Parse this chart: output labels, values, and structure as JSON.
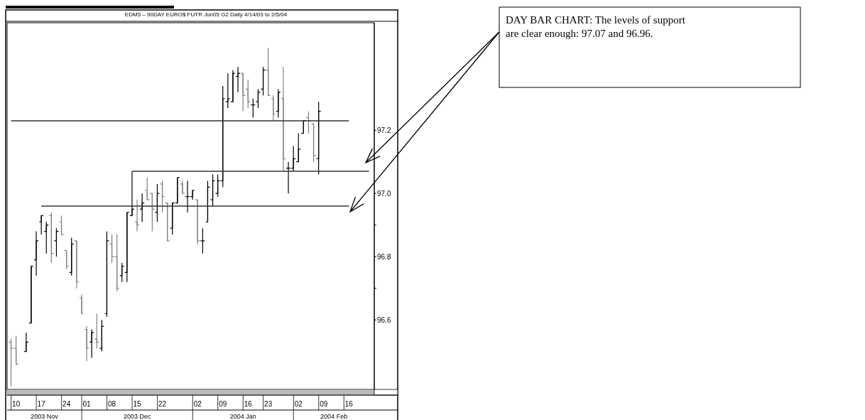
{
  "chart_data": {
    "type": "candlestick",
    "title": "EDM5 – 90DAY EURO$ FUTR Jun05 G2 Daily 4/14/03 to 2/5/04",
    "categories": [
      null,
      "10",
      null,
      null,
      null,
      null,
      "17",
      null,
      null,
      null,
      null,
      "24",
      null,
      null,
      null,
      "01",
      null,
      null,
      null,
      null,
      "08",
      null,
      null,
      null,
      null,
      "15",
      null,
      null,
      null,
      null,
      "22",
      null,
      null,
      null,
      null,
      null,
      null,
      "02",
      null,
      null,
      null,
      null,
      "09",
      null,
      null,
      null,
      null,
      "16",
      null,
      null,
      null,
      "23",
      null,
      null,
      null,
      null,
      null,
      "02",
      null,
      null,
      null,
      null,
      "09",
      null,
      null,
      null,
      null,
      "16",
      null,
      null,
      null,
      null,
      null
    ],
    "colors": [
      "#808080",
      "#808080",
      null,
      "#000000",
      "#000000",
      "#000000",
      "#000000",
      "#000000",
      "#808080",
      "#000000",
      "#808080",
      "#808080",
      "#000000",
      "#808080",
      "#808080",
      "#808080",
      "#000000",
      "#808080",
      "#000000",
      "#000000",
      "#808080",
      "#808080",
      "#000000",
      "#000000",
      "#000000",
      "#808080",
      "#000000",
      "#808080",
      "#808080",
      "#000000",
      "#808080",
      "#808080",
      "#000000",
      "#000000",
      "#808080",
      "#000000",
      "#000000",
      "#808080",
      "#000000",
      "#000000",
      "#000000",
      "#000000",
      "#000000",
      "#000000",
      "#000000",
      "#000000",
      "#808080",
      "#808080",
      "#000000",
      "#000000",
      "#000000",
      "#808080",
      "#808080",
      "#000000",
      "#808080",
      "#000000",
      "#000000",
      "#000000",
      "#000000",
      "#808080",
      "#808080",
      "#000000",
      null,
      null,
      null,
      null,
      null,
      null,
      null,
      null,
      null,
      null,
      null
    ],
    "ohlc": [
      [
        96.53,
        96.54,
        96.39,
        96.51
      ],
      [
        96.51,
        96.55,
        96.46,
        96.46
      ],
      null,
      [
        96.5,
        96.56,
        96.5,
        96.53
      ],
      [
        96.59,
        96.77,
        96.59,
        96.77
      ],
      [
        96.79,
        96.88,
        96.74,
        96.85
      ],
      [
        96.91,
        96.93,
        96.87,
        96.93
      ],
      [
        96.88,
        96.91,
        96.81,
        96.9
      ],
      [
        96.93,
        96.94,
        96.78,
        96.81
      ],
      [
        96.85,
        96.89,
        96.8,
        96.88
      ],
      [
        96.91,
        96.93,
        96.87,
        96.87
      ],
      [
        96.82,
        96.82,
        96.76,
        96.77
      ],
      [
        96.75,
        96.86,
        96.74,
        96.84
      ],
      [
        96.85,
        96.85,
        96.7,
        96.72
      ],
      [
        96.67,
        96.68,
        96.62,
        96.62
      ],
      [
        96.57,
        96.58,
        96.47,
        96.51
      ],
      [
        96.53,
        96.57,
        96.48,
        96.56
      ],
      [
        96.54,
        96.62,
        96.51,
        96.53
      ],
      [
        96.51,
        96.6,
        96.5,
        96.58
      ],
      [
        96.62,
        96.88,
        96.61,
        96.85
      ],
      [
        96.84,
        96.87,
        96.78,
        96.8
      ],
      [
        96.8,
        96.87,
        96.69,
        96.7
      ],
      [
        96.74,
        96.78,
        96.72,
        96.77
      ],
      [
        96.75,
        96.94,
        96.72,
        96.94
      ],
      [
        96.93,
        97.07,
        96.93,
        96.95
      ],
      [
        96.91,
        96.98,
        96.88,
        96.9
      ],
      [
        96.95,
        97.0,
        96.91,
        96.97
      ],
      [
        97.01,
        97.05,
        96.98,
        96.98
      ],
      [
        97.0,
        97.0,
        96.88,
        96.95
      ],
      [
        96.94,
        97.03,
        96.91,
        97.0
      ],
      [
        97.03,
        97.04,
        96.94,
        96.99
      ],
      [
        96.97,
        96.97,
        96.85,
        96.85
      ],
      [
        96.89,
        96.97,
        96.87,
        96.97
      ],
      [
        96.97,
        97.05,
        96.97,
        97.05
      ],
      [
        97.03,
        97.04,
        97.0,
        97.0
      ],
      [
        96.99,
        97.04,
        96.94,
        96.99
      ],
      [
        96.99,
        97.01,
        96.98,
        97.01
      ],
      [
        96.98,
        96.98,
        96.84,
        96.85
      ],
      [
        96.85,
        96.89,
        96.81,
        96.85
      ],
      [
        96.91,
        97.04,
        96.91,
        97.02
      ],
      [
        96.98,
        97.06,
        96.96,
        97.04
      ],
      [
        97.0,
        97.06,
        96.99,
        97.04
      ],
      [
        97.04,
        97.34,
        97.02,
        97.3
      ],
      [
        97.29,
        97.38,
        97.27,
        97.3
      ],
      [
        97.29,
        97.39,
        97.29,
        97.38
      ],
      [
        97.37,
        97.4,
        97.32,
        97.38
      ],
      [
        97.38,
        97.38,
        97.26,
        97.31
      ],
      [
        97.33,
        97.36,
        97.27,
        97.29
      ],
      [
        97.28,
        97.3,
        97.24,
        97.28
      ],
      [
        97.29,
        97.33,
        97.27,
        97.32
      ],
      [
        97.33,
        97.4,
        97.31,
        97.39
      ],
      [
        97.39,
        97.46,
        97.31,
        97.31
      ],
      [
        97.3,
        97.31,
        97.23,
        97.25
      ],
      [
        97.26,
        97.33,
        97.24,
        97.32
      ],
      [
        97.3,
        97.4,
        97.07,
        97.11
      ],
      [
        97.08,
        97.1,
        97.0,
        97.08
      ],
      [
        97.08,
        97.15,
        97.07,
        97.11
      ],
      [
        97.1,
        97.19,
        97.1,
        97.14
      ],
      [
        97.19,
        97.23,
        97.19,
        97.23
      ],
      [
        97.24,
        97.26,
        97.19,
        97.23
      ],
      [
        97.22,
        97.22,
        97.1,
        97.12
      ],
      [
        97.11,
        97.29,
        97.06,
        97.26
      ],
      null,
      null,
      null,
      null,
      null,
      null,
      null,
      null,
      null,
      null,
      null
    ],
    "series": [
      {
        "type": "line",
        "color": "#333333",
        "values": [
          97.23,
          97.23,
          97.23,
          97.23,
          97.23,
          97.23,
          97.23,
          97.23,
          97.23,
          97.23,
          97.23,
          97.23,
          97.23,
          97.23,
          97.23,
          97.23,
          97.23,
          97.23,
          97.23,
          97.23,
          97.23,
          97.23,
          97.23,
          97.23,
          97.23,
          97.23,
          97.23,
          97.23,
          97.23,
          97.23,
          97.23,
          97.23,
          97.23,
          97.23,
          97.23,
          97.23,
          97.23,
          97.23,
          97.23,
          97.23,
          97.23,
          97.23,
          97.23,
          97.23,
          97.23,
          97.23,
          97.23,
          97.23,
          97.23,
          97.23,
          97.23,
          97.23,
          97.23,
          97.23,
          97.23,
          97.23,
          97.23,
          97.23,
          97.23,
          97.23,
          97.23,
          97.23,
          97.23,
          97.23,
          97.23,
          97.23,
          97.23,
          97.23,
          null,
          null,
          null,
          null,
          null
        ]
      },
      {
        "type": "line",
        "color": "#333333",
        "values": [
          null,
          null,
          null,
          null,
          null,
          null,
          null,
          null,
          null,
          null,
          null,
          null,
          null,
          null,
          null,
          null,
          null,
          null,
          null,
          null,
          null,
          null,
          null,
          null,
          97.07,
          97.07,
          97.07,
          97.07,
          97.07,
          97.07,
          97.07,
          97.07,
          97.07,
          97.07,
          97.07,
          97.07,
          97.07,
          97.07,
          97.07,
          97.07,
          97.07,
          97.07,
          97.07,
          97.07,
          97.07,
          97.07,
          97.07,
          97.07,
          97.07,
          97.07,
          97.07,
          97.07,
          97.07,
          97.07,
          97.07,
          97.07,
          97.07,
          97.07,
          97.07,
          97.07,
          97.07,
          97.07,
          97.07,
          97.07,
          97.07,
          97.07,
          97.07,
          97.07,
          97.07,
          97.07,
          97.07,
          97.07,
          null
        ]
      },
      {
        "type": "line",
        "color": "#333333",
        "values": [
          null,
          null,
          null,
          null,
          null,
          null,
          96.96,
          96.96,
          96.96,
          96.96,
          96.96,
          96.96,
          96.96,
          96.96,
          96.96,
          96.96,
          96.96,
          96.96,
          96.96,
          96.96,
          96.96,
          96.96,
          96.96,
          96.96,
          96.96,
          96.96,
          96.96,
          96.96,
          96.96,
          96.96,
          96.96,
          96.96,
          96.96,
          96.96,
          96.96,
          96.96,
          96.96,
          96.96,
          96.96,
          96.96,
          96.96,
          96.96,
          96.96,
          96.96,
          96.96,
          96.96,
          96.96,
          96.96,
          96.96,
          96.96,
          96.96,
          96.96,
          96.96,
          96.96,
          96.96,
          96.96,
          96.96,
          96.96,
          96.96,
          96.96,
          96.96,
          96.96,
          96.96,
          96.96,
          96.96,
          96.96,
          96.96,
          96.96,
          null,
          null,
          null,
          null,
          null
        ]
      }
    ],
    "ylim": [
      96.38,
      97.54
    ],
    "yticks": [
      {
        "value": 96.6,
        "label": "96.6"
      },
      {
        "value": 96.7,
        "label": null
      },
      {
        "value": 96.8,
        "label": "96.8"
      },
      {
        "value": 96.9,
        "label": null
      },
      {
        "value": 97.0,
        "label": "97.0"
      },
      {
        "value": 97.2,
        "label": "97.2"
      }
    ],
    "annotations": [
      "DAY BAR CHART: The levels of support are clear enough: 97.07 and 96.96.",
      "2003 Nov",
      "2003 Dec",
      "2004 Jan",
      "2004 Feb"
    ]
  }
}
